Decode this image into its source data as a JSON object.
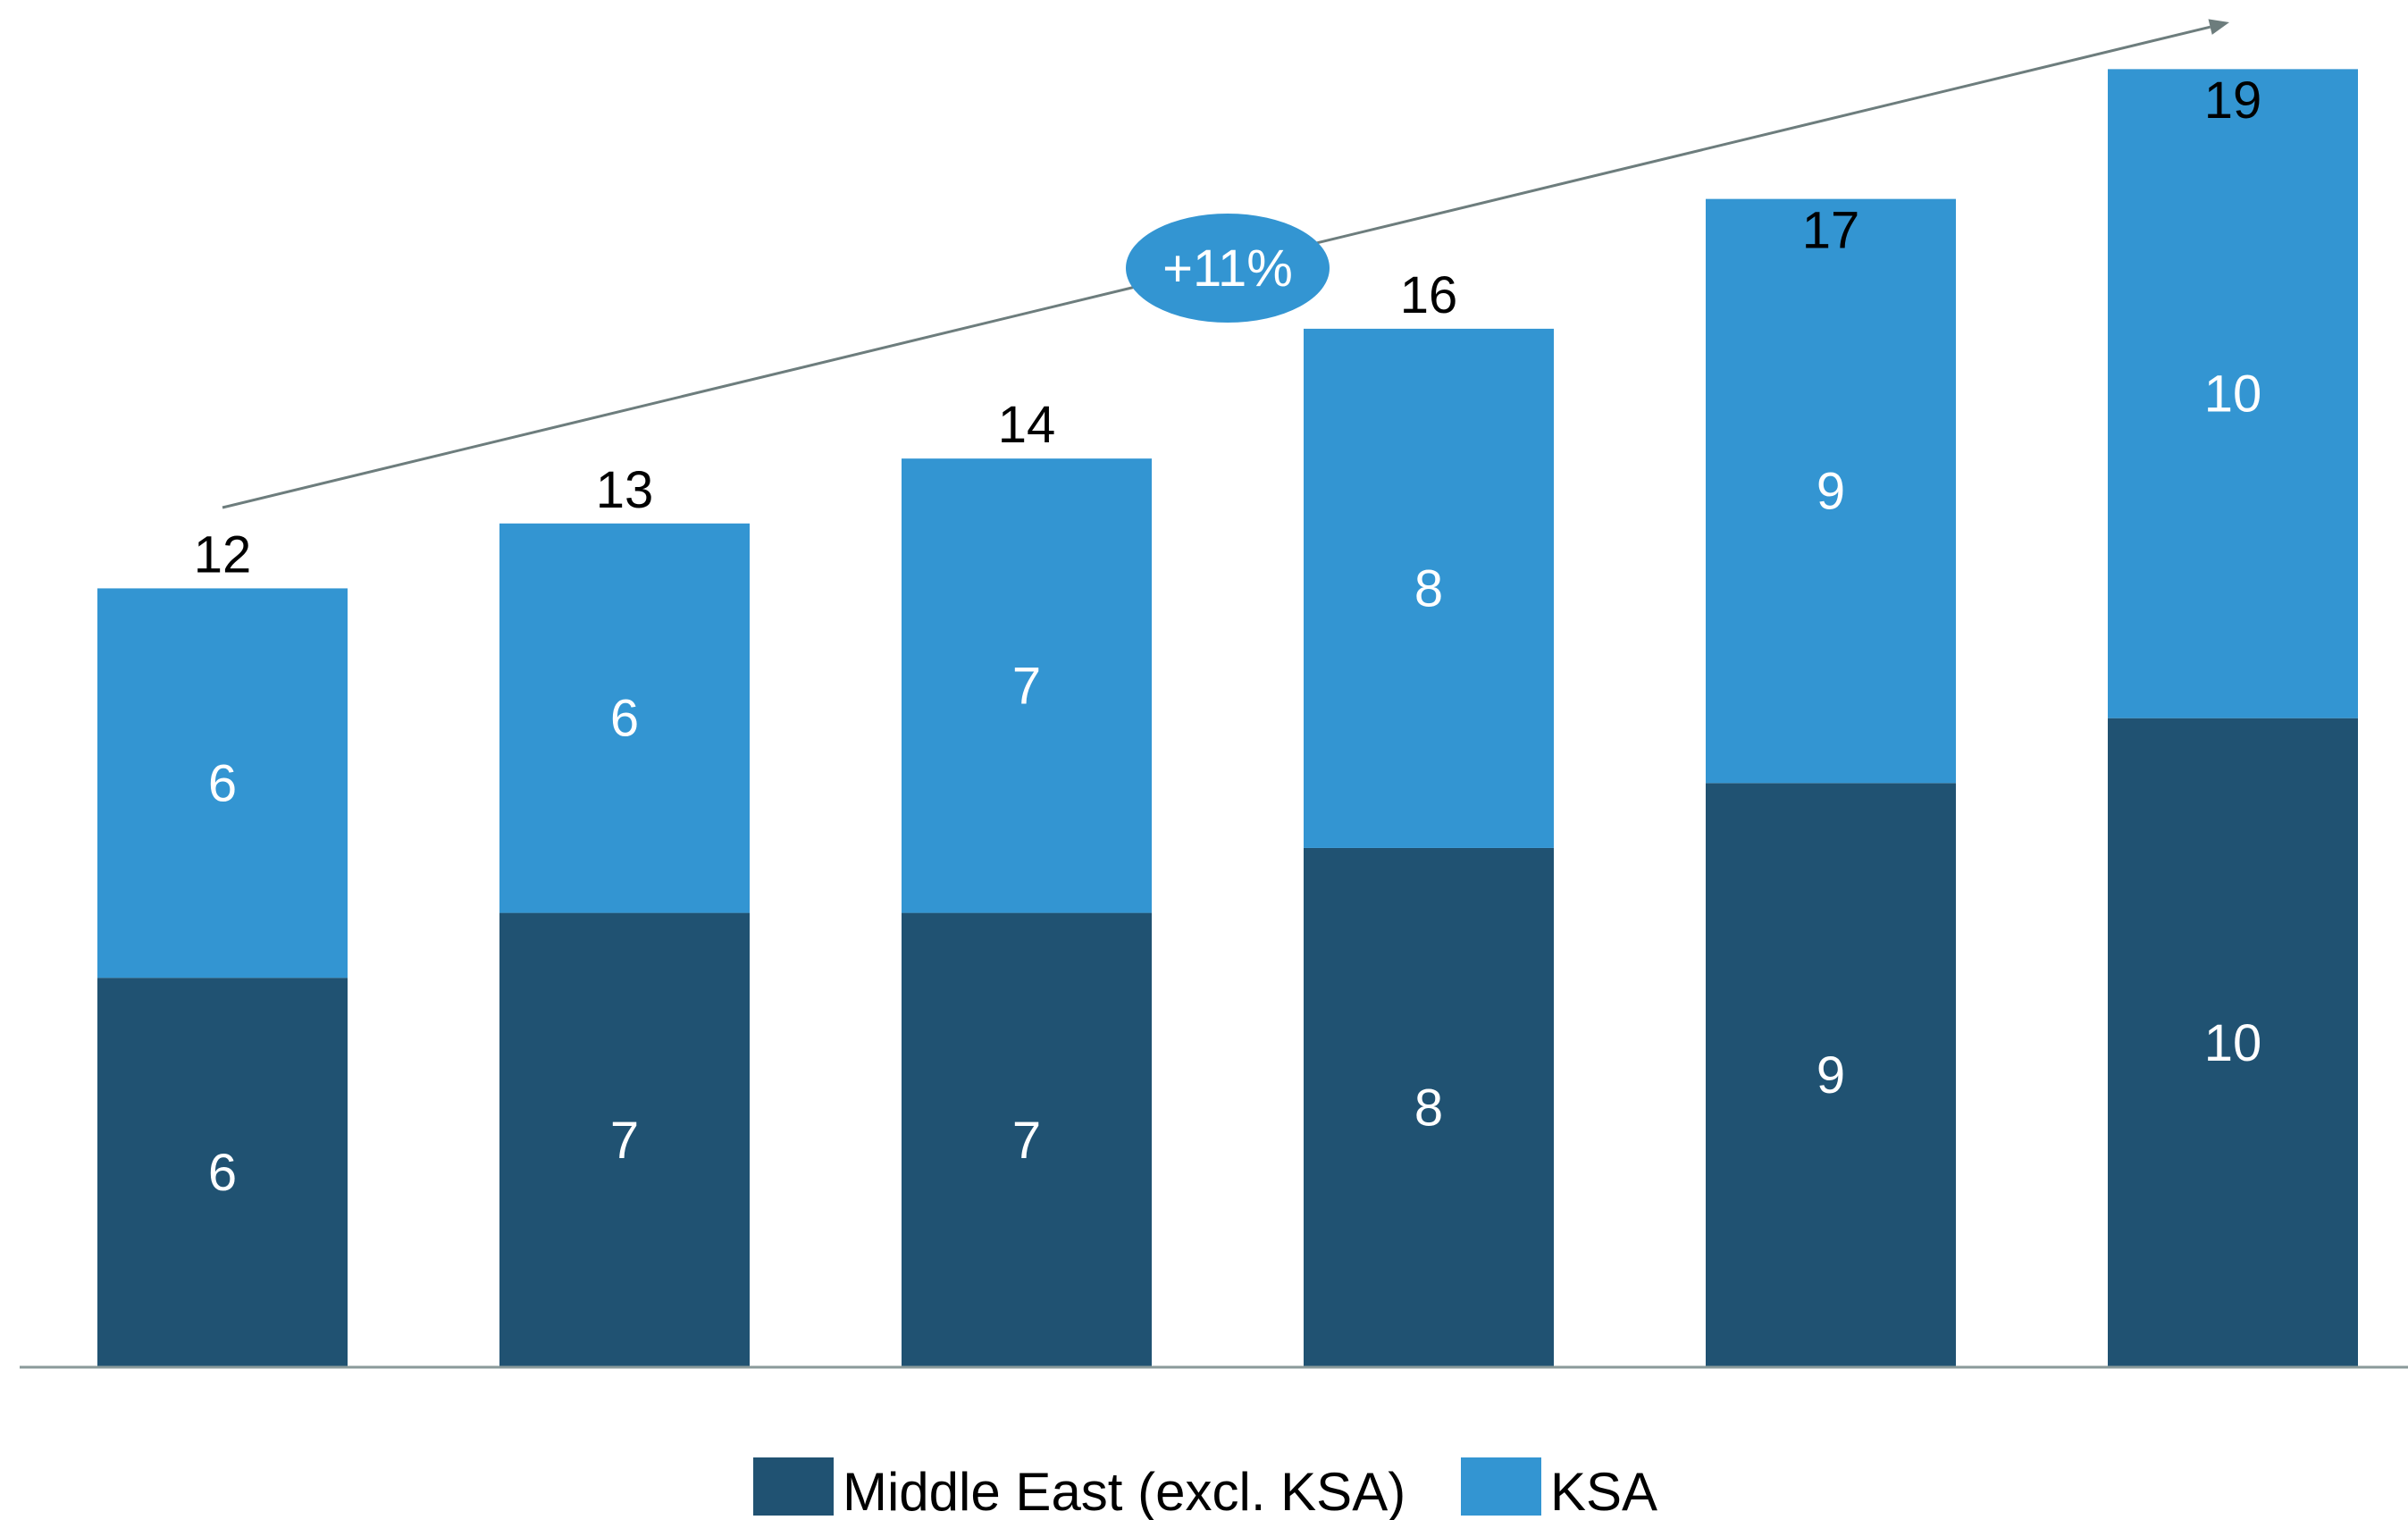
{
  "chart_data": {
    "type": "bar",
    "stacked": true,
    "title": "",
    "xlabel": "",
    "ylabel": "",
    "categories": [
      "",
      "",
      "",
      "",
      "",
      ""
    ],
    "series": [
      {
        "name": "Middle East (excl. KSA)",
        "color": "#205272",
        "values": [
          6,
          7,
          7,
          8,
          9,
          10
        ]
      },
      {
        "name": "KSA",
        "color": "#3395d2",
        "values": [
          6,
          6,
          7,
          8,
          9,
          10
        ]
      }
    ],
    "totals": [
      12,
      13,
      14,
      16,
      17,
      19
    ],
    "ylim": [
      0,
      19.5
    ],
    "grid": false,
    "legend": "bottom-center",
    "annotation": {
      "text": "+11%",
      "color": "#3395d2",
      "arrow_color": "#6d7d7d"
    }
  }
}
